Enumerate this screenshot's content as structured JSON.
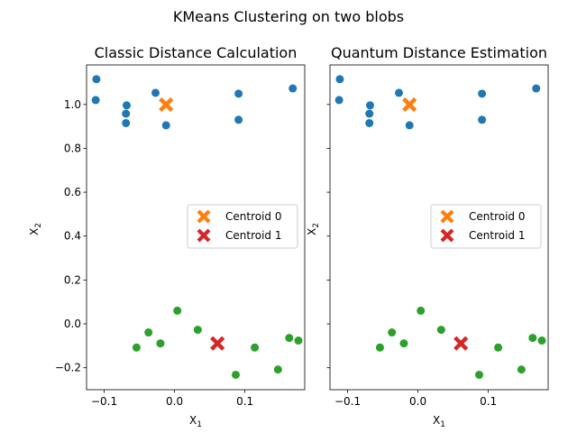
{
  "figure": {
    "suptitle": "KMeans Clustering on two blobs"
  },
  "chart_data": [
    {
      "type": "scatter",
      "title": "Classic Distance Calculation",
      "xlabel": "X1",
      "ylabel": "X2",
      "xlim": [
        -0.125,
        0.185
      ],
      "ylim": [
        -0.3,
        1.18
      ],
      "xticks": [
        -0.1,
        0.0,
        0.1
      ],
      "xtick_labels": [
        "−0.1",
        "0.0",
        "0.1"
      ],
      "yticks": [
        -0.2,
        0.0,
        0.2,
        0.4,
        0.6,
        0.8,
        1.0
      ],
      "ytick_labels": [
        "−0.2",
        "0.0",
        "0.2",
        "0.4",
        "0.6",
        "0.8",
        "1.0"
      ],
      "legend_position": "center-right",
      "series": [
        {
          "color": "#1f77b4",
          "marker": "circle",
          "points": [
            [
              -0.111,
              1.115
            ],
            [
              -0.112,
              1.02
            ],
            [
              -0.068,
              0.996
            ],
            [
              -0.069,
              0.958
            ],
            [
              -0.069,
              0.915
            ],
            [
              -0.027,
              1.053
            ],
            [
              -0.012,
              0.905
            ],
            [
              0.091,
              1.049
            ],
            [
              0.091,
              0.93
            ],
            [
              0.168,
              1.073
            ]
          ]
        },
        {
          "color": "#2ca02c",
          "marker": "circle",
          "points": [
            [
              -0.054,
              -0.108
            ],
            [
              -0.037,
              -0.039
            ],
            [
              -0.02,
              -0.089
            ],
            [
              0.004,
              0.06
            ],
            [
              0.033,
              -0.027
            ],
            [
              0.087,
              -0.232
            ],
            [
              0.114,
              -0.108
            ],
            [
              0.147,
              -0.208
            ],
            [
              0.163,
              -0.064
            ],
            [
              0.176,
              -0.076
            ]
          ]
        },
        {
          "name": "Centroid 0",
          "color": "#ff7f0e",
          "marker": "X",
          "points": [
            [
              -0.012,
              0.999
            ]
          ]
        },
        {
          "name": "Centroid 1",
          "color": "#d62728",
          "marker": "X",
          "points": [
            [
              0.061,
              -0.089
            ]
          ]
        }
      ]
    },
    {
      "type": "scatter",
      "title": "Quantum Distance Estimation",
      "xlabel": "X1",
      "ylabel": "X2",
      "xlim": [
        -0.125,
        0.185
      ],
      "ylim": [
        -0.3,
        1.18
      ],
      "xticks": [
        -0.1,
        0.0,
        0.1
      ],
      "xtick_labels": [
        "−0.1",
        "0.0",
        "0.1"
      ],
      "yticks": [
        -0.2,
        0.0,
        0.2,
        0.4,
        0.6,
        0.8,
        1.0
      ],
      "ytick_labels": [],
      "legend_position": "center-right",
      "series": [
        {
          "color": "#1f77b4",
          "marker": "circle",
          "points": [
            [
              -0.111,
              1.115
            ],
            [
              -0.112,
              1.02
            ],
            [
              -0.068,
              0.996
            ],
            [
              -0.069,
              0.958
            ],
            [
              -0.069,
              0.915
            ],
            [
              -0.027,
              1.053
            ],
            [
              -0.012,
              0.905
            ],
            [
              0.091,
              1.049
            ],
            [
              0.091,
              0.93
            ],
            [
              0.168,
              1.073
            ]
          ]
        },
        {
          "color": "#2ca02c",
          "marker": "circle",
          "points": [
            [
              -0.054,
              -0.108
            ],
            [
              -0.037,
              -0.039
            ],
            [
              -0.02,
              -0.089
            ],
            [
              0.004,
              0.06
            ],
            [
              0.033,
              -0.027
            ],
            [
              0.087,
              -0.232
            ],
            [
              0.114,
              -0.108
            ],
            [
              0.147,
              -0.208
            ],
            [
              0.163,
              -0.064
            ],
            [
              0.176,
              -0.076
            ]
          ]
        },
        {
          "name": "Centroid 0",
          "color": "#ff7f0e",
          "marker": "X",
          "points": [
            [
              -0.012,
              0.999
            ]
          ]
        },
        {
          "name": "Centroid 1",
          "color": "#d62728",
          "marker": "X",
          "points": [
            [
              0.061,
              -0.089
            ]
          ]
        }
      ]
    }
  ]
}
